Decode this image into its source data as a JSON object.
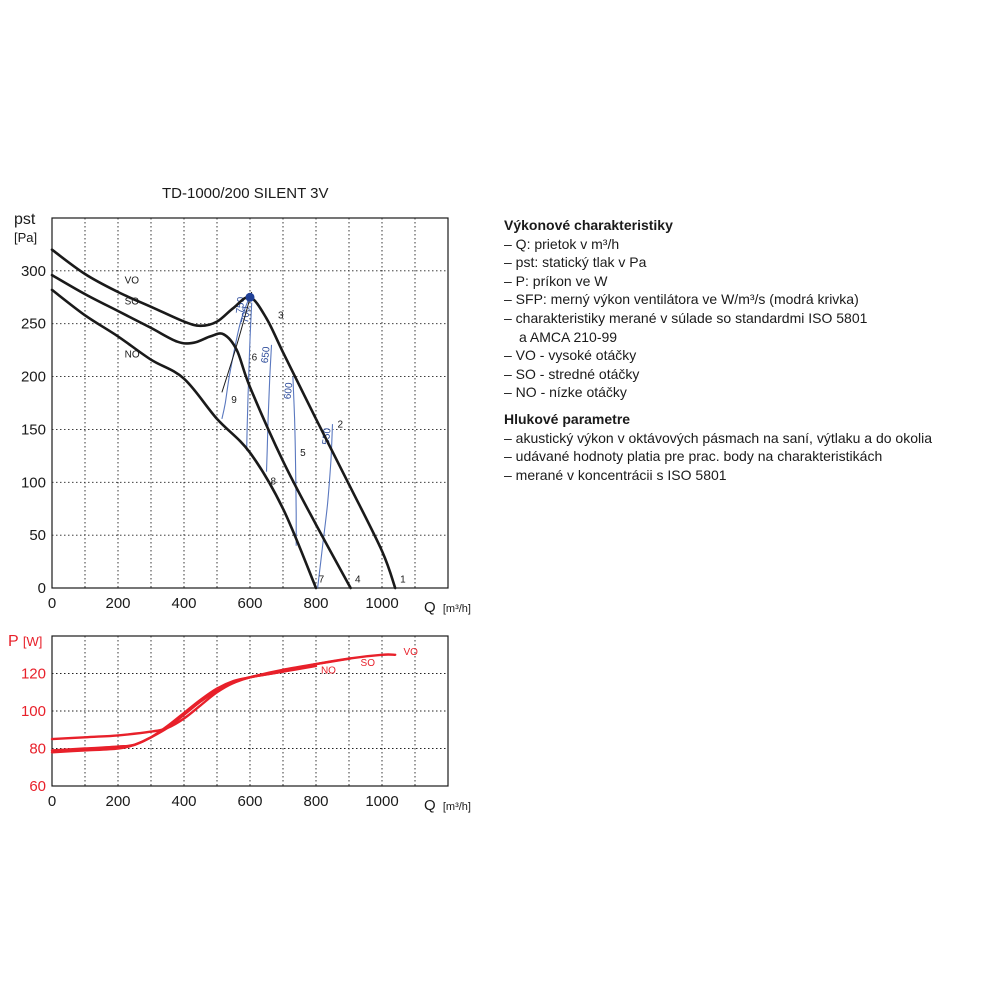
{
  "chart_data": [
    {
      "type": "line",
      "title": "TD-1000/200 SILENT 3V",
      "ylabel_main": "pst",
      "ylabel_unit": "[Pa]",
      "xlabel": "Q",
      "xlabel_unit": "[m³/h]",
      "xlim": [
        0,
        1200
      ],
      "ylim": [
        0,
        350
      ],
      "xticks": [
        0,
        200,
        400,
        600,
        800,
        1000
      ],
      "yticks": [
        0,
        50,
        100,
        150,
        200,
        250,
        300
      ],
      "grid": true,
      "series": [
        {
          "name": "VO",
          "x": [
            0,
            100,
            200,
            300,
            400,
            450,
            500,
            550,
            600,
            650,
            700,
            800,
            900,
            1000,
            1040
          ],
          "y": [
            320,
            297,
            280,
            266,
            252,
            248,
            252,
            265,
            275,
            255,
            223,
            160,
            98,
            35,
            0
          ]
        },
        {
          "name": "SO",
          "x": [
            0,
            100,
            200,
            300,
            380,
            430,
            480,
            520,
            560,
            600,
            700,
            800,
            905
          ],
          "y": [
            296,
            278,
            262,
            246,
            233,
            232,
            238,
            240,
            225,
            190,
            120,
            60,
            0
          ]
        },
        {
          "name": "NO",
          "x": [
            0,
            100,
            200,
            300,
            400,
            500,
            600,
            700,
            800
          ],
          "y": [
            282,
            258,
            238,
            216,
            198,
            160,
            128,
            75,
            0
          ]
        }
      ],
      "sfp_curves": [
        {
          "label": "750",
          "x": [
            598,
            570,
            540,
            525,
            515
          ],
          "y": [
            275,
            250,
            205,
            175,
            160
          ]
        },
        {
          "label": "700",
          "x": [
            605,
            600,
            596,
            592,
            590
          ],
          "y": [
            270,
            235,
            200,
            160,
            130
          ]
        },
        {
          "label": "650",
          "x": [
            665,
            660,
            655,
            652,
            650
          ],
          "y": [
            230,
            200,
            160,
            130,
            110
          ]
        },
        {
          "label": "600",
          "x": [
            730,
            735,
            738,
            740,
            740
          ],
          "y": [
            200,
            160,
            120,
            70,
            40
          ]
        },
        {
          "label": "550",
          "x": [
            850,
            845,
            835,
            820,
            805
          ],
          "y": [
            155,
            120,
            80,
            40,
            0
          ]
        }
      ],
      "system_curve": {
        "x": [
          515,
          560,
          605
        ],
        "y": [
          185,
          230,
          280
        ]
      },
      "operating_point": {
        "x": 600,
        "y": 275
      },
      "point_labels": [
        {
          "label": "1",
          "x": 1055,
          "y": 5
        },
        {
          "label": "2",
          "x": 865,
          "y": 152
        },
        {
          "label": "3",
          "x": 685,
          "y": 255
        },
        {
          "label": "4",
          "x": 918,
          "y": 5
        },
        {
          "label": "5",
          "x": 752,
          "y": 125
        },
        {
          "label": "6",
          "x": 605,
          "y": 215
        },
        {
          "label": "7",
          "x": 808,
          "y": 5
        },
        {
          "label": "8",
          "x": 662,
          "y": 98
        },
        {
          "label": "9",
          "x": 543,
          "y": 175
        }
      ],
      "series_labels": [
        {
          "label": "VO",
          "x": 220,
          "y": 288
        },
        {
          "label": "SO",
          "x": 220,
          "y": 268
        },
        {
          "label": "NO",
          "x": 220,
          "y": 218
        }
      ]
    },
    {
      "type": "line",
      "ylabel_main": "P",
      "ylabel_unit": "[W]",
      "xlabel": "Q",
      "xlabel_unit": "[m³/h]",
      "xlim": [
        0,
        1200
      ],
      "ylim": [
        60,
        140
      ],
      "xticks": [
        0,
        200,
        400,
        600,
        800,
        1000
      ],
      "yticks": [
        60,
        80,
        100,
        120
      ],
      "grid": true,
      "color": "#e8202a",
      "series": [
        {
          "name": "VO",
          "x": [
            0,
            100,
            200,
            300,
            350,
            400,
            450,
            500,
            550,
            600,
            700,
            800,
            900,
            1000,
            1040
          ],
          "y": [
            85,
            86,
            87,
            89,
            91,
            96,
            103,
            110,
            115,
            118,
            121,
            125,
            128,
            130,
            130
          ]
        },
        {
          "name": "SO",
          "x": [
            0,
            100,
            200,
            250,
            300,
            350,
            400,
            450,
            500,
            550,
            600,
            700,
            800,
            905
          ],
          "y": [
            79,
            80,
            81,
            82,
            86,
            91,
            98,
            105,
            111,
            115,
            118,
            122,
            125,
            128
          ]
        },
        {
          "name": "NO",
          "x": [
            0,
            100,
            200,
            250,
            300,
            350,
            400,
            450,
            500,
            550,
            600,
            700,
            800
          ],
          "y": [
            78,
            79,
            80,
            82,
            86,
            92,
            99,
            106,
            112,
            116,
            118,
            121,
            124
          ]
        }
      ],
      "series_labels": [
        {
          "label": "VO",
          "x": 1065,
          "y": 130
        },
        {
          "label": "SO",
          "x": 935,
          "y": 124
        },
        {
          "label": "NO",
          "x": 815,
          "y": 120
        }
      ]
    }
  ],
  "legend": {
    "heading1": "Výkonové charakteristiky",
    "items1": [
      "– Q: prietok v m³/h",
      "– pst: statický tlak v Pa",
      "– P: príkon ve W",
      "– SFP: merný výkon ventilátora ve W/m³/s (modrá krivka)",
      "– charakteristiky merané v súlade so standardmi ISO 5801",
      "   a AMCA 210-99",
      "– VO - vysoké otáčky",
      "– SO - stredné otáčky",
      "– NO - nízke otáčky"
    ],
    "heading2": " Hlukové parametre",
    "items2": [
      "– akustický výkon v oktávových pásmach na saní, výtlaku a do okolia",
      "– udávané hodnoty platia pre prac. body na charakteristikách",
      "– merané v koncentrácii s ISO 5801"
    ]
  }
}
